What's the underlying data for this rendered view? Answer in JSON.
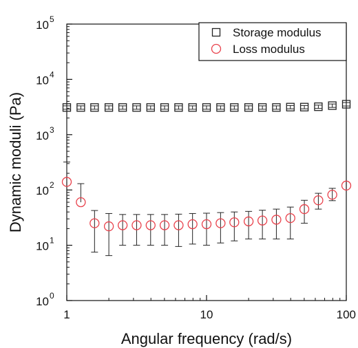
{
  "chart_data": {
    "type": "scatter",
    "xlabel": "Angular frequency (rad/s)",
    "ylabel": "Dynamic moduli (Pa)",
    "x_scale": "log",
    "y_scale": "log",
    "xlim": [
      1,
      100
    ],
    "ylim": [
      1,
      100000
    ],
    "x_ticks": [
      {
        "value": 1,
        "label": "1"
      },
      {
        "value": 10,
        "label": "10"
      },
      {
        "value": 100,
        "label": "100"
      }
    ],
    "y_ticks": [
      {
        "value": 1,
        "base": "10",
        "exp": "0"
      },
      {
        "value": 10,
        "base": "10",
        "exp": "1"
      },
      {
        "value": 100,
        "base": "10",
        "exp": "2"
      },
      {
        "value": 1000,
        "base": "10",
        "exp": "3"
      },
      {
        "value": 10000,
        "base": "10",
        "exp": "4"
      },
      {
        "value": 100000,
        "base": "10",
        "exp": "5"
      }
    ],
    "legend_position": "top-right",
    "series": [
      {
        "name": "Storage modulus",
        "marker": "square",
        "color": "#222222",
        "x": [
          1,
          1.26,
          1.58,
          2,
          2.51,
          3.16,
          3.98,
          5.01,
          6.31,
          7.94,
          10,
          12.6,
          15.8,
          20,
          25.1,
          31.6,
          39.8,
          50.1,
          63.1,
          79.4,
          100
        ],
        "y": [
          3100,
          3100,
          3100,
          3100,
          3100,
          3100,
          3100,
          3100,
          3100,
          3100,
          3100,
          3100,
          3100,
          3100,
          3100,
          3100,
          3150,
          3150,
          3200,
          3350,
          3550
        ],
        "err": [
          220,
          220,
          220,
          220,
          220,
          220,
          220,
          220,
          220,
          220,
          220,
          220,
          220,
          220,
          220,
          220,
          220,
          220,
          220,
          240,
          250
        ]
      },
      {
        "name": "Loss modulus",
        "marker": "circle",
        "color": "#e8404a",
        "x": [
          1,
          1.26,
          1.58,
          2,
          2.51,
          3.16,
          3.98,
          5.01,
          6.31,
          7.94,
          10,
          12.6,
          15.8,
          20,
          25.1,
          31.6,
          39.8,
          50.1,
          63.1,
          79.4,
          100
        ],
        "y": [
          140,
          60,
          25,
          22,
          23,
          23,
          23,
          23,
          23,
          24,
          24,
          25,
          26,
          27,
          28,
          29,
          31,
          45,
          65,
          82,
          120
        ],
        "err_low": [
          0,
          0,
          17.5,
          15.5,
          13,
          13,
          13,
          13,
          13.5,
          13.5,
          14,
          14,
          14,
          14,
          15,
          16,
          18,
          20,
          20,
          18,
          0
        ],
        "err_high": [
          180,
          70,
          17.5,
          15.5,
          13,
          13,
          13,
          13,
          13.5,
          13.5,
          14,
          14,
          14,
          14,
          15,
          16,
          18,
          20,
          22,
          25,
          0
        ]
      }
    ]
  }
}
